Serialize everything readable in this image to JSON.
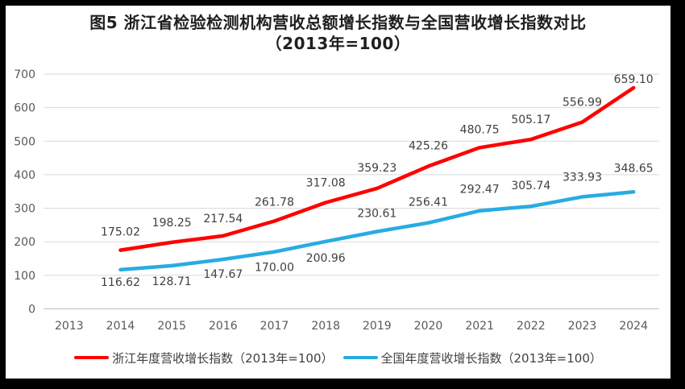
{
  "figure": {
    "title_line1": "图5  浙江省检验检测机构营收总额增长指数与全国营收增长指数对比",
    "title_line2": "（2013年=100）"
  },
  "chart_data": {
    "type": "line",
    "title": "图5 浙江省检验检测机构营收总额增长指数与全国营收增长指数对比（2013年=100）",
    "categories": [
      "2013",
      "2014",
      "2015",
      "2016",
      "2017",
      "2018",
      "2019",
      "2020",
      "2021",
      "2022",
      "2023",
      "2024"
    ],
    "ylim": [
      0,
      700
    ],
    "ytick_step": 100,
    "ytick_labels": [
      "0",
      "100",
      "200",
      "300",
      "400",
      "500",
      "600",
      "700"
    ],
    "grid": true,
    "legend_position": "bottom",
    "series": [
      {
        "key": "zhejiang",
        "name": "浙江年度营收增长指数（2013年=100）",
        "color": "#ff0000",
        "start_category": "2014",
        "values": [
          "175.02",
          "198.25",
          "217.54",
          "261.78",
          "317.08",
          "359.23",
          "425.26",
          "480.75",
          "505.17",
          "556.99",
          "659.10"
        ],
        "label_side_hint": [
          "above",
          "above",
          "above",
          "above",
          "above",
          "above",
          "above",
          "above",
          "above",
          "above",
          "above"
        ],
        "label_dy": [
          -18,
          -20,
          -17,
          -19,
          -20,
          -21,
          -21,
          -18,
          -20,
          -20,
          -6
        ]
      },
      {
        "key": "national",
        "name": "全国年度营收增长指数（2013年=100）",
        "color": "#29abe2",
        "start_category": "2014",
        "values": [
          "116.62",
          "128.71",
          "147.67",
          "170.00",
          "200.96",
          "230.61",
          "256.41",
          "292.47",
          "305.74",
          "333.93",
          "348.65"
        ],
        "label_side_hint": [
          "below",
          "below",
          "below",
          "below",
          "below",
          "above",
          "above",
          "above",
          "above",
          "above",
          "above"
        ],
        "label_dy": [
          20,
          24,
          23,
          24,
          25,
          -18,
          -21,
          -22,
          -21,
          -20,
          -25
        ]
      }
    ]
  },
  "colors": {
    "frame": "#000000",
    "background": "#ffffff",
    "grid": "#d9d9d9",
    "axis": "#c0c0c0",
    "tick_text": "#595959",
    "label_text": "#404040",
    "title_text": "#1f1f1f"
  }
}
